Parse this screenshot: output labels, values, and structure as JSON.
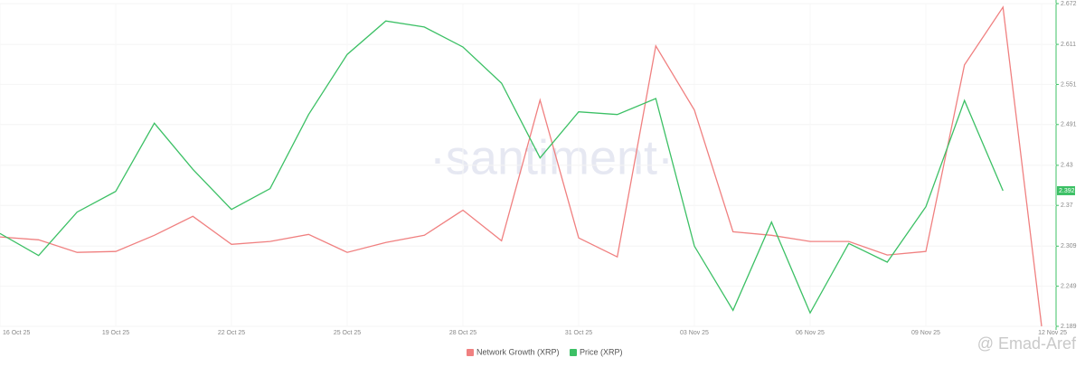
{
  "chart_data": {
    "type": "line",
    "watermark": "·santiment·",
    "attribution": "@ Emad-Aref",
    "categories": [
      "16 Oct 25",
      null,
      null,
      "19 Oct 25",
      null,
      null,
      "22 Oct 25",
      null,
      null,
      "25 Oct 25",
      null,
      null,
      "28 Oct 25",
      null,
      null,
      "31 Oct 25",
      null,
      null,
      "03 Nov 25",
      null,
      null,
      "06 Nov 25",
      null,
      null,
      "09 Nov 25",
      null,
      null,
      "12 Nov 25"
    ],
    "series": [
      {
        "name": "Network Growth (XRP)",
        "color": "#f08080",
        "axis": "y",
        "values": [
          27.7,
          26.8,
          22.9,
          23.2,
          28.2,
          34.1,
          25.4,
          26.3,
          28.5,
          22.9,
          26.0,
          28.2,
          36.0,
          26.5,
          70.1,
          27.4,
          21.5,
          86.9,
          67.0,
          29.3,
          28.2,
          26.3,
          26.3,
          22.1,
          23.2,
          81.0,
          98.9,
          0
        ]
      },
      {
        "name": "Price (XRP)",
        "color": "#3cc065",
        "axis": "y2",
        "values": [
          2.328,
          2.295,
          2.36,
          2.391,
          2.493,
          2.424,
          2.364,
          2.395,
          2.506,
          2.596,
          2.646,
          2.637,
          2.607,
          2.553,
          2.441,
          2.51,
          2.506,
          2.53,
          2.309,
          2.213,
          2.345,
          2.209,
          2.313,
          2.285,
          2.368,
          2.527,
          2.392,
          null
        ]
      }
    ],
    "ylim": [
      0,
      100
    ],
    "y2lim": [
      2.189,
      2.672
    ],
    "y2ticks": [
      2.189,
      2.249,
      2.309,
      2.37,
      2.43,
      2.491,
      2.551,
      2.611,
      2.672
    ],
    "grid": true
  }
}
